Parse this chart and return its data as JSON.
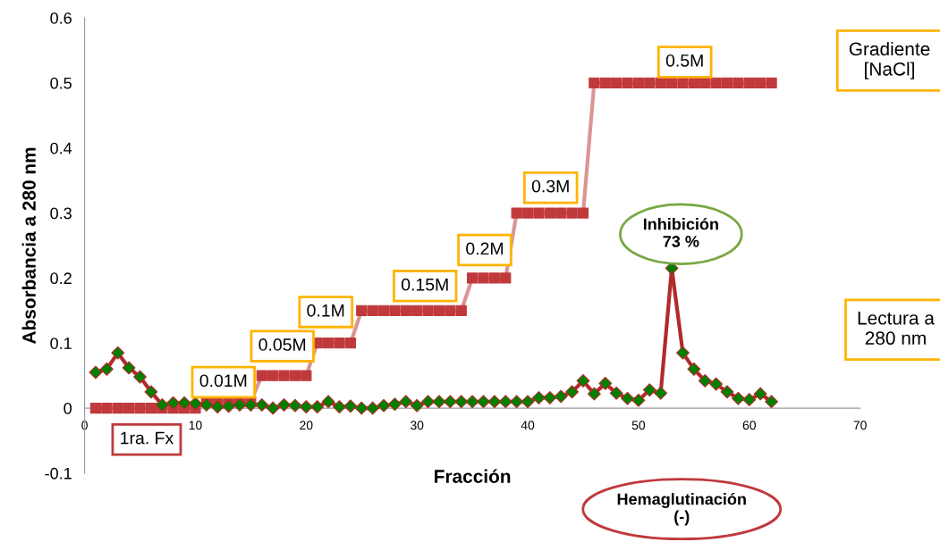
{
  "chart_data": {
    "type": "line",
    "xlabel": "Fracción",
    "ylabel": "Absorbancia a 280 nm",
    "xlim": [
      0,
      70
    ],
    "ylim": [
      -0.1,
      0.6
    ],
    "xticks": [
      0,
      10,
      20,
      30,
      40,
      50,
      60,
      70
    ],
    "yticks": [
      -0.1,
      0,
      0.1,
      0.2,
      0.3,
      0.4,
      0.5,
      0.6
    ],
    "grid": false,
    "legend": false,
    "line_style": "solid",
    "series": [
      {
        "name": "Gradiente [NaCl]",
        "color": "#d99594",
        "marker": "square",
        "x": [
          1,
          2,
          3,
          4,
          5,
          6,
          7,
          8,
          9,
          10,
          11,
          12,
          13,
          14,
          15,
          16,
          17,
          18,
          19,
          20,
          21,
          22,
          23,
          24,
          25,
          26,
          27,
          28,
          29,
          30,
          31,
          32,
          33,
          34,
          35,
          36,
          37,
          38,
          39,
          40,
          41,
          42,
          43,
          44,
          45,
          46,
          47,
          48,
          49,
          50,
          51,
          52,
          53,
          54,
          55,
          56,
          57,
          58,
          59,
          60,
          61,
          62
        ],
        "values": [
          0,
          0,
          0,
          0,
          0,
          0,
          0,
          0,
          0,
          0,
          0.01,
          0.01,
          0.01,
          0.01,
          0.01,
          0.05,
          0.05,
          0.05,
          0.05,
          0.05,
          0.1,
          0.1,
          0.1,
          0.1,
          0.15,
          0.15,
          0.15,
          0.15,
          0.15,
          0.15,
          0.15,
          0.15,
          0.15,
          0.15,
          0.2,
          0.2,
          0.2,
          0.2,
          0.3,
          0.3,
          0.3,
          0.3,
          0.3,
          0.3,
          0.3,
          0.5,
          0.5,
          0.5,
          0.5,
          0.5,
          0.5,
          0.5,
          0.5,
          0.5,
          0.5,
          0.5,
          0.5,
          0.5,
          0.5,
          0.5,
          0.5,
          0.5
        ],
        "colors": [
          "#c0393b",
          "#c0393b",
          "#c0393b",
          "#c0393b",
          "#c0393b",
          "#c0393b",
          "#c0393b",
          "#c0393b",
          "#c0393b",
          "#c0393b",
          "#c0393b",
          "#c0393b",
          "#c0393b",
          "#c0393b",
          "#c0393b",
          "#c0393b",
          "#c0393b",
          "#c0393b",
          "#c0393b",
          "#c0393b",
          "#c0393b",
          "#c0393b",
          "#c0393b",
          "#c0393b",
          "#c0393b",
          "#c0393b",
          "#c0393b",
          "#c0393b",
          "#c0393b",
          "#c0393b",
          "#c0393b",
          "#c0393b",
          "#c0393b",
          "#c0393b",
          "#c0393b",
          "#c0393b",
          "#c0393b",
          "#c0393b",
          "#c0393b",
          "#c0393b",
          "#c0393b",
          "#c0393b",
          "#c0393b",
          "#c0393b",
          "#c0393b",
          "#c0393b",
          "#c0393b",
          "#c0393b",
          "#c0393b",
          "#c0393b",
          "#c0393b",
          "#c0393b",
          "#c0393b",
          "#c0393b",
          "#c0393b",
          "#c0393b",
          "#c0393b",
          "#c0393b",
          "#c0393b",
          "#c0393b",
          "#c0393b",
          "#c0393b"
        ]
      },
      {
        "name": "Lectura a 280 nm",
        "color": "#b22a2a",
        "marker": "diamond",
        "x": [
          1,
          2,
          3,
          4,
          5,
          6,
          7,
          8,
          9,
          10,
          11,
          12,
          13,
          14,
          15,
          16,
          17,
          18,
          19,
          20,
          21,
          22,
          23,
          24,
          25,
          26,
          27,
          28,
          29,
          30,
          31,
          32,
          33,
          34,
          35,
          36,
          37,
          38,
          39,
          40,
          41,
          42,
          43,
          44,
          45,
          46,
          47,
          48,
          49,
          50,
          51,
          52,
          53,
          54,
          55,
          56,
          57,
          58,
          59,
          60,
          61,
          62
        ],
        "values": [
          0.055,
          0.06,
          0.085,
          0.062,
          0.048,
          0.025,
          0.005,
          0.008,
          0.008,
          0.007,
          0.005,
          0.002,
          0.003,
          0.005,
          0.005,
          0.005,
          0.0,
          0.005,
          0.004,
          0.002,
          0.002,
          0.01,
          0.002,
          0.003,
          0.0,
          0.0,
          0.004,
          0.006,
          0.01,
          0.004,
          0.01,
          0.01,
          0.01,
          0.01,
          0.01,
          0.01,
          0.01,
          0.01,
          0.01,
          0.01,
          0.016,
          0.016,
          0.018,
          0.025,
          0.042,
          0.022,
          0.038,
          0.023,
          0.015,
          0.012,
          0.028,
          0.023,
          0.215,
          0.085,
          0.06,
          0.042,
          0.037,
          0.025,
          0.015,
          0.013,
          0.022,
          0.01
        ],
        "colors": [
          "#008000",
          "#008000",
          "#008000",
          "#008000",
          "#008000",
          "#008000",
          "#008000",
          "#008000",
          "#008000",
          "#008000",
          "#008000",
          "#008000",
          "#008000",
          "#008000",
          "#008000",
          "#008000",
          "#008000",
          "#008000",
          "#008000",
          "#008000",
          "#008000",
          "#008000",
          "#008000",
          "#008000",
          "#008000",
          "#008000",
          "#008000",
          "#008000",
          "#008000",
          "#008000",
          "#008000",
          "#008000",
          "#008000",
          "#008000",
          "#008000",
          "#008000",
          "#008000",
          "#008000",
          "#008000",
          "#008000",
          "#008000",
          "#008000",
          "#008000",
          "#008000",
          "#008000",
          "#008000",
          "#008000",
          "#008000",
          "#008000",
          "#008000",
          "#008000",
          "#008000",
          "#008000",
          "#008000",
          "#008000",
          "#008000",
          "#008000",
          "#008000",
          "#008000",
          "#008000",
          "#008000",
          "#008000"
        ]
      }
    ],
    "annotations": [
      "0.01M",
      "0.05M",
      "0.1M",
      "0.15M",
      "0.2M",
      "0.3M",
      "0.5M",
      "Inhibición\n73 %",
      "1ra. Fx",
      "Hemaglutinación\n(-)"
    ]
  }
}
